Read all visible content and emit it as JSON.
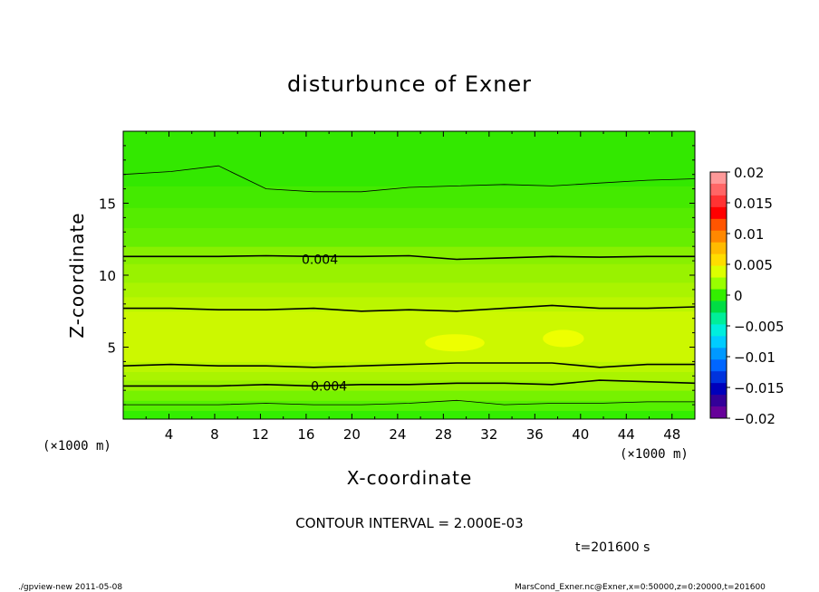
{
  "chart_data": {
    "type": "heatmap",
    "title": "disturbunce of Exner",
    "xlabel": "X-coordinate",
    "ylabel": "Z-coordinate",
    "x_unit": "(×1000 m)",
    "y_unit": "(×1000 m)",
    "xlim": [
      0,
      50
    ],
    "ylim": [
      0,
      20
    ],
    "x_ticks": [
      4,
      8,
      12,
      16,
      20,
      24,
      28,
      32,
      36,
      40,
      44,
      48
    ],
    "y_ticks": [
      5,
      10,
      15
    ],
    "contour_interval_text": "CONTOUR INTERVAL = 2.000E-03",
    "contour_labels": [
      {
        "text": "0.004",
        "x": 17.2,
        "z": 11.1
      },
      {
        "text": "0.004",
        "x": 18.0,
        "z": 2.3
      }
    ],
    "contours": [
      {
        "level": 0.002,
        "z": [
          17.0,
          17.2,
          17.6,
          16.0,
          15.8,
          15.8,
          16.1,
          16.2,
          16.3,
          16.2,
          16.4,
          16.6,
          16.7
        ]
      },
      {
        "level": 0.004,
        "z": [
          11.3,
          11.3,
          11.3,
          11.35,
          11.3,
          11.3,
          11.35,
          11.1,
          11.2,
          11.3,
          11.25,
          11.3,
          11.3
        ]
      },
      {
        "level": 0.006,
        "z": [
          7.7,
          7.7,
          7.6,
          7.6,
          7.7,
          7.5,
          7.6,
          7.5,
          7.7,
          7.9,
          7.7,
          7.7,
          7.8
        ]
      },
      {
        "level": 0.006,
        "z": [
          3.7,
          3.8,
          3.7,
          3.7,
          3.6,
          3.7,
          3.8,
          3.9,
          3.9,
          3.9,
          3.6,
          3.8,
          3.8
        ]
      },
      {
        "level": 0.004,
        "z": [
          2.3,
          2.3,
          2.3,
          2.4,
          2.3,
          2.4,
          2.4,
          2.5,
          2.5,
          2.4,
          2.7,
          2.6,
          2.5
        ]
      },
      {
        "level": 0.002,
        "z": [
          1.0,
          1.0,
          1.0,
          1.1,
          1.0,
          1.0,
          1.1,
          1.3,
          1.0,
          1.1,
          1.1,
          1.2,
          1.2
        ]
      }
    ],
    "bands": [
      {
        "zmin": 0,
        "zmax": 0.6,
        "value": 0.001,
        "color": "#33ee00"
      },
      {
        "zmin": 0.6,
        "zmax": 1.3,
        "value": 0.002,
        "color": "#55f000"
      },
      {
        "zmin": 1.3,
        "zmax": 2.0,
        "value": 0.003,
        "color": "#77f200"
      },
      {
        "zmin": 2.0,
        "zmax": 2.7,
        "value": 0.004,
        "color": "#99f200"
      },
      {
        "zmin": 2.7,
        "zmax": 3.3,
        "value": 0.005,
        "color": "#aaf400"
      },
      {
        "zmin": 3.3,
        "zmax": 4.0,
        "value": 0.0055,
        "color": "#bbf600"
      },
      {
        "zmin": 4.0,
        "zmax": 7.5,
        "value": 0.0065,
        "color": "#ccf800"
      },
      {
        "zmin": 7.5,
        "zmax": 8.5,
        "value": 0.0055,
        "color": "#bbf600"
      },
      {
        "zmin": 8.5,
        "zmax": 9.5,
        "value": 0.005,
        "color": "#aaf400"
      },
      {
        "zmin": 9.5,
        "zmax": 10.8,
        "value": 0.0045,
        "color": "#99f200"
      },
      {
        "zmin": 10.8,
        "zmax": 12.0,
        "value": 0.004,
        "color": "#88f000"
      },
      {
        "zmin": 12.0,
        "zmax": 13.3,
        "value": 0.0035,
        "color": "#66ee00"
      },
      {
        "zmin": 13.3,
        "zmax": 14.7,
        "value": 0.003,
        "color": "#55ec00"
      },
      {
        "zmin": 14.7,
        "zmax": 16.2,
        "value": 0.0025,
        "color": "#44ea00"
      },
      {
        "zmin": 16.2,
        "zmax": 20.0,
        "value": 0.0015,
        "color": "#33e800"
      }
    ],
    "highlights": [
      {
        "x": 29.0,
        "z": 5.3,
        "rx": 2.6,
        "rz": 0.6,
        "color": "#eeff00"
      },
      {
        "x": 38.5,
        "z": 5.6,
        "rx": 1.8,
        "rz": 0.6,
        "color": "#eeff00"
      }
    ],
    "colorbar": {
      "tick_labels": [
        "0.02",
        "0.015",
        "0.01",
        "0.005",
        "0",
        "−0.005",
        "−0.01",
        "−0.015",
        "−0.02"
      ],
      "tick_values": [
        0.02,
        0.015,
        0.01,
        0.005,
        0,
        -0.005,
        -0.01,
        -0.015,
        -0.02
      ],
      "colors": [
        "#ff9999",
        "#ff6666",
        "#ff3333",
        "#ff0000",
        "#ff5500",
        "#ff8800",
        "#ffbb00",
        "#ffdd00",
        "#ddff00",
        "#99ff00",
        "#33ee00",
        "#00dd44",
        "#00ee99",
        "#00eedd",
        "#00ccff",
        "#0099ff",
        "#0066ff",
        "#0033dd",
        "#0000bb",
        "#330099",
        "#660099"
      ]
    }
  },
  "annotations": {
    "time": "t=201600 s",
    "footer_left": "./gpview-new   2011-05-08",
    "footer_right": "MarsCond_Exner.nc@Exner,x=0:50000,z=0:20000,t=201600"
  }
}
